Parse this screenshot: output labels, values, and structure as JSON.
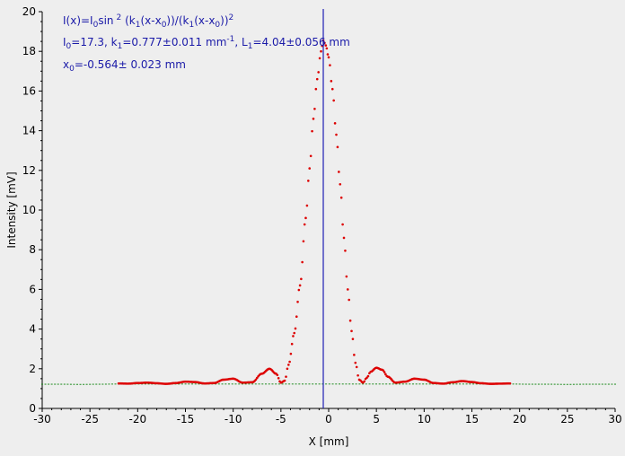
{
  "chart_data": {
    "type": "scatter",
    "title": "",
    "xlabel": "X [mm]",
    "ylabel": "Intensity [mV]",
    "xlim": [
      -30,
      30
    ],
    "ylim": [
      0,
      20
    ],
    "x_ticks": [
      -30,
      -25,
      -20,
      -15,
      -10,
      -5,
      0,
      5,
      10,
      15,
      20,
      25,
      30
    ],
    "y_ticks": [
      0,
      2,
      4,
      6,
      8,
      10,
      12,
      14,
      16,
      18,
      20
    ],
    "grid": false,
    "background": "#eeeeee",
    "colors": {
      "measured": "#dd0000",
      "baseline": "#1e8c1e",
      "center_line": "#1f1fb4",
      "annotation": "#1a1aa8"
    },
    "cursor_x": -0.564,
    "annotations": {
      "line1_a": "I(x)=I",
      "line1_b": "0",
      "line1_c": "sin",
      "line1_d": "2",
      "line1_e": " (k",
      "line1_f": "1",
      "line1_g": "(x-x",
      "line1_h": "0",
      "line1_i": "))/(k",
      "line1_j": "1",
      "line1_k": "(x-x",
      "line1_l": "0",
      "line1_m": "))",
      "line1_n": "2",
      "line2_a": "I",
      "line2_b": "0",
      "line2_c": "=17.3,  k",
      "line2_d": "1",
      "line2_e": "=0.777±0.011 mm",
      "line2_f": "-1",
      "line2_g": ",   L",
      "line2_h": "1",
      "line2_i": "=4.04±0.056 mm",
      "line3_a": "x",
      "line3_b": "0",
      "line3_c": "=-0.564±  0.023 mm"
    },
    "series": [
      {
        "x": [
          -22,
          -21,
          -20,
          -19,
          -18,
          -17,
          -16,
          -15,
          -14,
          -13,
          -12,
          -11,
          -10,
          -9,
          -8,
          -7,
          -6.2,
          -5.5,
          -5,
          -4.6,
          -4.2,
          -3.6,
          -3,
          -2.4,
          -2,
          -1.6,
          -1.2,
          -0.8,
          -0.56,
          -0.3,
          0,
          0.4,
          0.8,
          1.2,
          1.6,
          2,
          2.4,
          2.8,
          3.2,
          3.6,
          4,
          4.4,
          5,
          5.6,
          6.2,
          7,
          8,
          9,
          10,
          11,
          12,
          13,
          14,
          15,
          16,
          17,
          18,
          19
        ],
        "y": [
          1.26,
          1.25,
          1.28,
          1.3,
          1.27,
          1.24,
          1.28,
          1.35,
          1.33,
          1.26,
          1.28,
          1.45,
          1.5,
          1.3,
          1.32,
          1.75,
          2.0,
          1.75,
          1.3,
          1.4,
          2.2,
          3.8,
          6.2,
          9.6,
          12.1,
          14.6,
          16.6,
          18.0,
          18.55,
          18.3,
          17.7,
          16.1,
          13.8,
          11.3,
          8.6,
          6.0,
          3.9,
          2.3,
          1.45,
          1.3,
          1.55,
          1.85,
          2.05,
          1.95,
          1.6,
          1.3,
          1.35,
          1.5,
          1.45,
          1.28,
          1.25,
          1.32,
          1.38,
          1.33,
          1.27,
          1.24,
          1.25,
          1.26
        ]
      },
      {
        "x": [
          -30,
          -28,
          -26,
          -24,
          -22,
          19,
          21,
          23,
          25,
          27,
          30
        ],
        "y": [
          1.22,
          1.22,
          1.21,
          1.22,
          1.23,
          1.23,
          1.22,
          1.22,
          1.21,
          1.22,
          1.22
        ]
      }
    ]
  }
}
